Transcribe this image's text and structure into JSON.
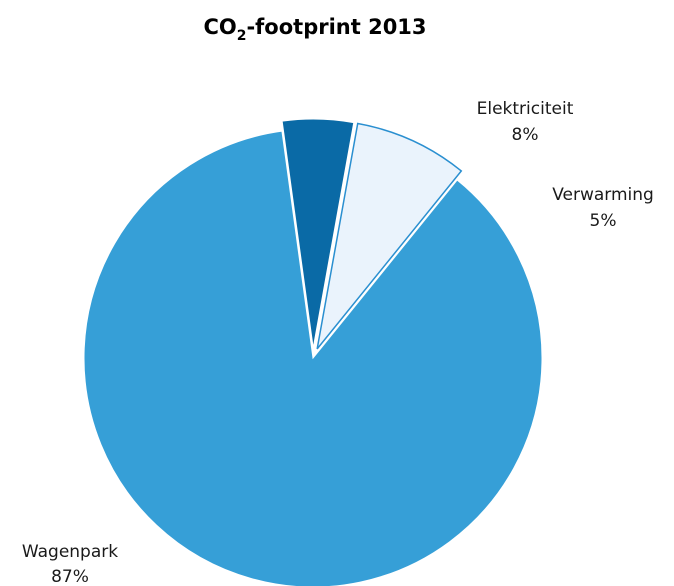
{
  "chart_data": {
    "type": "pie",
    "title_main": "CO",
    "title_sub": "2",
    "title_rest": "-footprint 2013",
    "slices": [
      {
        "name": "Wagenpark",
        "value": 87,
        "label": "87%",
        "color": "#369fd7"
      },
      {
        "name": "Verwarming",
        "value": 5,
        "label": "5%",
        "color": "#0a6aa6"
      },
      {
        "name": "Elektriciteit",
        "value": 8,
        "label": "8%",
        "color": "#eaf3fc"
      }
    ],
    "exploded": [
      "Verwarming",
      "Elektriciteit"
    ],
    "legend": "none"
  }
}
